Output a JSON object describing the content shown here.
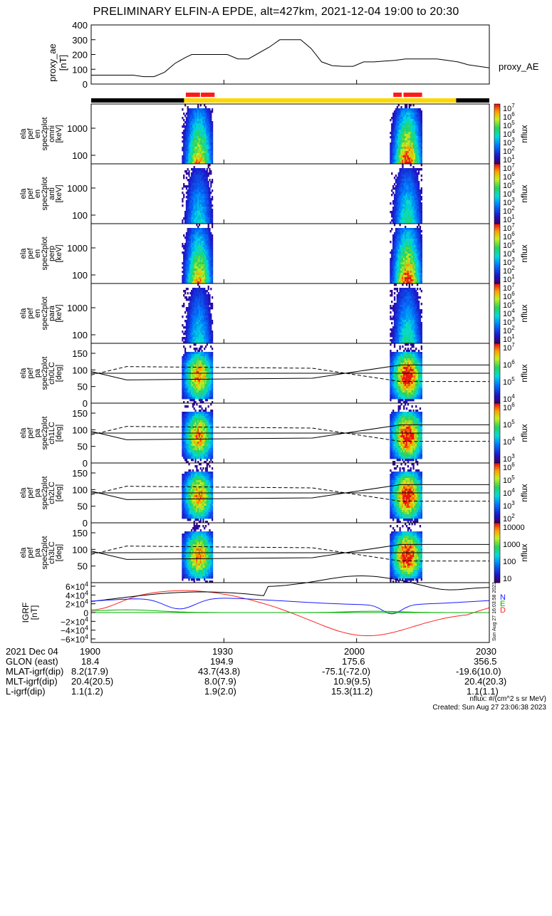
{
  "title": "PRELIMINARY ELFIN-A EPDE, alt=427km, 2021-12-04 19:00 to 20:30",
  "colors": {
    "state_black": "#000000",
    "state_yellow": "#ffd700",
    "sci_red": "#ff1a1a",
    "n": "#1a1aff",
    "e": "#00b000",
    "d": "#ff2222",
    "mag": "#000000"
  },
  "chart_data": [
    {
      "type": "line",
      "panel": "proxy_ae",
      "ylabel": [
        "proxy_ae",
        "[nT]"
      ],
      "ylim": [
        0,
        400
      ],
      "yticks": [
        "400",
        "300",
        "200",
        "100",
        "0"
      ],
      "legend": "proxy_AE",
      "x_min": [
        0,
        10,
        20,
        25,
        30,
        35,
        40,
        45,
        48,
        55,
        60,
        65,
        70,
        75,
        85,
        90,
        95,
        100,
        105,
        110,
        115,
        120,
        125,
        130,
        135,
        140,
        145,
        150,
        155,
        160,
        165,
        170,
        175,
        180,
        190
      ],
      "values": [
        60,
        60,
        60,
        50,
        50,
        80,
        140,
        180,
        200,
        200,
        200,
        200,
        170,
        170,
        250,
        300,
        300,
        300,
        240,
        150,
        125,
        120,
        120,
        150,
        150,
        155,
        160,
        170,
        170,
        170,
        170,
        160,
        150,
        130,
        110
      ]
    },
    {
      "type": "heatmap",
      "panels": [
        {
          "label": [
            "ela",
            "pef",
            "en",
            "spec2plot",
            "omni",
            "[keV]"
          ],
          "yticks": [
            "1000",
            "100"
          ],
          "cbar_ticks": [
            "10^7",
            "10^6",
            "10^5",
            "10^4",
            "10^3",
            "10^2",
            "10^1"
          ],
          "cbar_label": "nflux"
        },
        {
          "label": [
            "ela",
            "pef",
            "en",
            "spec2plot",
            "anti",
            "[keV]"
          ],
          "yticks": [
            "1000",
            "100"
          ],
          "cbar_ticks": [
            "10^7",
            "10^6",
            "10^5",
            "10^4",
            "10^3",
            "10^2",
            "10^1"
          ],
          "cbar_label": "nflux"
        },
        {
          "label": [
            "ela",
            "pef",
            "en",
            "spec2plot",
            "perp",
            "[keV]"
          ],
          "yticks": [
            "1000",
            "100"
          ],
          "cbar_ticks": [
            "10^7",
            "10^6",
            "10^5",
            "10^4",
            "10^3",
            "10^2",
            "10^1"
          ],
          "cbar_label": "nflux"
        },
        {
          "label": [
            "ela",
            "pef",
            "en",
            "spec2plot",
            "para",
            "[keV]"
          ],
          "yticks": [
            "1000",
            "100"
          ],
          "cbar_ticks": [
            "10^7",
            "10^6",
            "10^5",
            "10^4",
            "10^3",
            "10^2",
            "10^1"
          ],
          "cbar_label": "nflux"
        },
        {
          "label": [
            "ela",
            "pef",
            "pa",
            "spec2plot",
            "ch0LC",
            "[deg]"
          ],
          "yticks": [
            "150",
            "100",
            "50",
            "0"
          ],
          "cbar_ticks": [
            "10^7",
            "10^6",
            "10^5",
            "10^4"
          ],
          "cbar_label": "nflux"
        },
        {
          "label": [
            "ela",
            "pef",
            "pa",
            "spec2plot",
            "ch1LC",
            "[deg]"
          ],
          "yticks": [
            "150",
            "100",
            "50",
            "0"
          ],
          "cbar_ticks": [
            "10^6",
            "10^5",
            "10^4",
            "10^3"
          ],
          "cbar_label": "nflux"
        },
        {
          "label": [
            "ela",
            "pef",
            "pa",
            "spec2plot",
            "ch2LC",
            "[deg]"
          ],
          "yticks": [
            "150",
            "100",
            "50",
            "0"
          ],
          "cbar_ticks": [
            "10^6",
            "10^5",
            "10^4",
            "10^3",
            "10^2"
          ],
          "cbar_label": "nflux"
        },
        {
          "label": [
            "ela",
            "pef",
            "pa",
            "spec2plot",
            "ch3LC",
            "[deg]"
          ],
          "yticks": [
            "150",
            "100",
            "50"
          ],
          "cbar_ticks": [
            "10000",
            "1000",
            "100",
            "10"
          ],
          "cbar_label": "nflux"
        }
      ]
    },
    {
      "type": "line",
      "panel": "igrf",
      "ylabel": [
        "IGRF",
        "[nT]"
      ],
      "yticks": [
        "6×10^4",
        "4×10^4",
        "2×10^4",
        "0",
        "−2×10^4",
        "−4×10^4",
        "−6×10^4"
      ],
      "legend": [
        "N",
        "E",
        "D"
      ],
      "stamp": "Sun Aug 27 16:03:58 2023"
    }
  ],
  "ephemeris": {
    "rows": [
      {
        "label": "2021 Dec 04",
        "v": [
          "1900",
          "1930",
          "2000",
          "2030"
        ]
      },
      {
        "label": "GLON (east)",
        "v": [
          "18.4",
          "194.9",
          "175.6",
          "356.5"
        ]
      },
      {
        "label": "MLAT-igrf(dip)",
        "v": [
          "8.2(17.9)",
          "43.7(43.8)",
          "-75.1(-72.0)",
          "-19.6(10.0)"
        ]
      },
      {
        "label": "MLT-igrf(dip)",
        "v": [
          "20.4(20.5)",
          "8.0(7.9)",
          "10.9(9.5)",
          "20.4(20.3)"
        ]
      },
      {
        "label": "L-igrf(dip)",
        "v": [
          "1.1(1.2)",
          "1.9(2.0)",
          "15.3(11.2)",
          "1.1(1.1)"
        ]
      }
    ]
  },
  "footer": {
    "units": "nflux: #/(cm^2 s sr MeV)",
    "created": "Created: Sun Aug 27 23:06:38 2023"
  }
}
